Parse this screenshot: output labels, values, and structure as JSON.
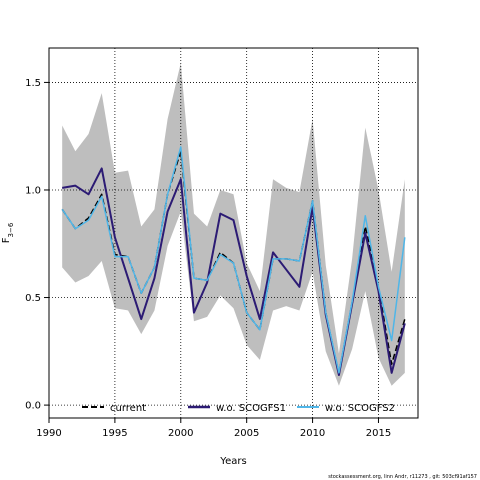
{
  "chart_data": {
    "type": "line",
    "xlabel": "Years",
    "ylabel": "F",
    "ylabel_sub": "3−6",
    "xlim": [
      1990,
      2018
    ],
    "ylim": [
      -0.06,
      1.66
    ],
    "xticks": [
      1990,
      1995,
      2000,
      2005,
      2010,
      2015
    ],
    "yticks": [
      0.0,
      0.5,
      1.0,
      1.5
    ],
    "ytick_labels": [
      "0.0",
      "0.5",
      "1.0",
      "1.5"
    ],
    "grid": "dotted",
    "legend": "bottom",
    "footnote": "stockassessment.org, linn Andr, r11273 , git: 503cf91af157",
    "x": [
      1991,
      1992,
      1993,
      1994,
      1995,
      1996,
      1997,
      1998,
      1999,
      2000,
      2001,
      2002,
      2003,
      2004,
      2005,
      2006,
      2007,
      2008,
      2009,
      2010,
      2011,
      2012,
      2013,
      2014,
      2015,
      2016,
      2017
    ],
    "band": {
      "upper": [
        1.3,
        1.18,
        1.26,
        1.45,
        1.08,
        1.09,
        0.83,
        0.91,
        1.33,
        1.59,
        0.89,
        0.83,
        1.0,
        0.98,
        0.66,
        0.53,
        1.05,
        1.01,
        0.99,
        1.33,
        0.65,
        0.24,
        0.68,
        1.29,
        1.0,
        0.62,
        1.05
      ],
      "lower": [
        0.64,
        0.57,
        0.6,
        0.67,
        0.45,
        0.44,
        0.33,
        0.44,
        0.74,
        0.9,
        0.39,
        0.41,
        0.51,
        0.45,
        0.28,
        0.21,
        0.44,
        0.46,
        0.44,
        0.62,
        0.25,
        0.09,
        0.26,
        0.53,
        0.22,
        0.09,
        0.15
      ],
      "color": "#bebebe"
    },
    "series": [
      {
        "name": "current",
        "color": "#000000",
        "dash": "6,3",
        "width": 1.5,
        "values": [
          0.91,
          0.82,
          0.87,
          0.98,
          0.7,
          0.69,
          0.52,
          0.64,
          0.98,
          1.18,
          0.59,
          0.58,
          0.71,
          0.66,
          0.43,
          0.35,
          0.68,
          0.68,
          0.67,
          0.95,
          0.43,
          0.14,
          0.47,
          0.83,
          0.55,
          0.19,
          0.4
        ]
      },
      {
        "name": "w.o. SCOGFS1",
        "color": "#2c1b74",
        "dash": "",
        "width": 2,
        "values": [
          1.01,
          1.02,
          0.98,
          1.1,
          0.78,
          0.59,
          0.4,
          0.59,
          0.9,
          1.05,
          0.43,
          0.57,
          0.89,
          0.86,
          0.6,
          0.4,
          0.71,
          0.63,
          0.55,
          0.92,
          0.42,
          0.14,
          0.47,
          0.8,
          0.53,
          0.15,
          0.38
        ]
      },
      {
        "name": "w.o. SCOGFS2",
        "color": "#4fb6e8",
        "dash": "",
        "width": 1.5,
        "values": [
          0.91,
          0.82,
          0.86,
          0.97,
          0.69,
          0.69,
          0.52,
          0.64,
          0.98,
          1.2,
          0.59,
          0.58,
          0.7,
          0.66,
          0.43,
          0.35,
          0.68,
          0.68,
          0.67,
          0.95,
          0.43,
          0.15,
          0.48,
          0.88,
          0.55,
          0.3,
          0.78
        ]
      }
    ]
  }
}
